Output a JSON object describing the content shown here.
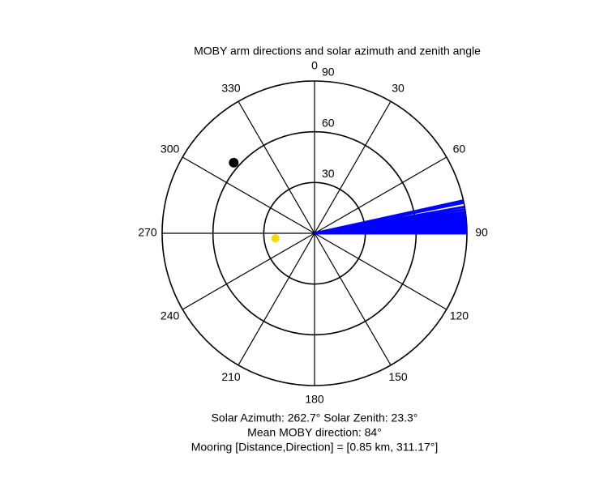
{
  "chart_data": {
    "type": "polar",
    "title": "MOBY arm directions and solar azimuth and zenith angle",
    "rlim": [
      0,
      90
    ],
    "rticks": [
      30,
      60,
      90
    ],
    "thetaticks": [
      0,
      30,
      60,
      90,
      120,
      150,
      180,
      210,
      240,
      270,
      300,
      330
    ],
    "arms": {
      "color": "#0000ff",
      "theta": [
        77.6,
        78,
        78.4,
        80,
        81,
        82,
        82.5,
        83,
        83.5,
        84,
        84.5,
        85,
        85.5,
        86,
        86.5,
        87,
        87.5,
        88,
        88.5,
        89,
        89.5,
        90
      ],
      "r": [
        90,
        90,
        90,
        90,
        90,
        90,
        90,
        90,
        90,
        90,
        90,
        90,
        90,
        90,
        90,
        90,
        90,
        90,
        90,
        90,
        90,
        90
      ]
    },
    "sun": {
      "color": "#ffd700",
      "theta": 262.7,
      "r": 23.3
    },
    "mooring": {
      "color": "#000000",
      "theta": 311.17,
      "r": 63.4
    },
    "annotations": [
      "Solar Azimuth: 262.7°   Solar Zenith: 23.3°",
      "Mean MOBY direction: 84°",
      "Mooring [Distance,Direction] = [0.85 km, 311.17°]"
    ]
  }
}
